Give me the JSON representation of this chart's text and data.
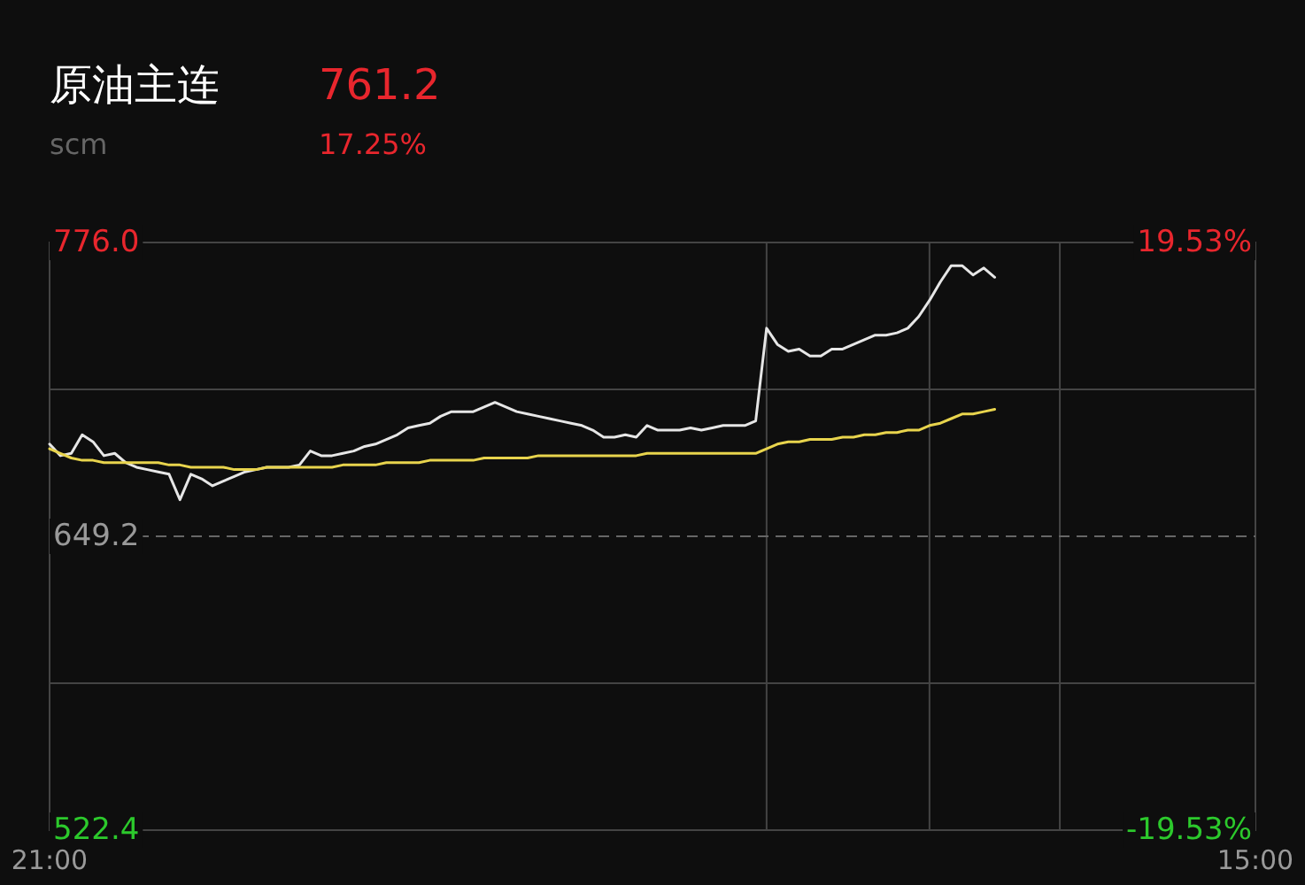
{
  "chart_data": {
    "type": "line",
    "title": "原油主连",
    "subtitle": "scm",
    "annotations": [
      "761.2",
      "17.25%"
    ],
    "categories": [
      "21:00",
      null,
      null,
      null,
      null,
      null,
      null,
      null,
      null,
      null,
      null,
      null,
      null,
      null,
      null,
      null,
      null,
      null,
      null,
      null,
      null,
      null,
      null,
      null,
      null,
      null,
      null,
      null,
      null,
      null,
      null,
      null,
      null,
      null,
      null,
      null,
      null,
      null,
      null,
      null,
      null,
      null,
      null,
      null,
      null,
      null,
      null,
      null,
      null,
      null,
      null,
      null,
      null,
      null,
      null,
      null,
      null,
      null,
      null,
      null,
      null,
      null,
      null,
      null,
      null,
      null,
      null,
      null,
      null,
      null,
      null,
      null,
      null,
      null,
      null,
      null,
      null,
      null,
      null,
      null,
      null,
      null,
      null,
      null,
      null,
      null,
      null,
      null,
      null,
      null,
      null,
      null,
      null,
      null,
      null,
      null,
      null,
      null,
      null,
      null,
      null,
      null,
      null,
      null,
      null,
      null,
      null,
      null,
      null,
      null,
      null,
      "15:00"
    ],
    "ylim": [
      522.4,
      776.0
    ],
    "yticks": [
      522.4,
      {
        "value": 585.8,
        "label": null
      },
      649.2,
      {
        "value": 712.6,
        "label": null
      },
      {
        "value": 776.0,
        "label": "776.0"
      }
    ],
    "y2lim": [
      -19.53,
      19.53
    ],
    "y2ticks": [
      {
        "value": -19.53,
        "label": "-19.53%"
      },
      {
        "value": 19.53,
        "label": "19.53%"
      }
    ],
    "grid": "y",
    "line_style": "solid",
    "ref_lines": [
      {
        "axis": "y",
        "value": 649.2,
        "color": "#666666",
        "line_style": "dashed"
      }
    ],
    "series": [
      {
        "color": "#e6e6e6",
        "values": [
          689,
          684,
          685,
          693,
          690,
          684,
          685,
          681,
          679,
          678,
          677,
          676,
          665,
          676,
          674,
          671,
          673,
          675,
          677,
          678,
          679,
          679,
          679,
          680,
          686,
          684,
          684,
          685,
          686,
          688,
          689,
          691,
          693,
          696,
          697,
          698,
          701,
          703,
          703,
          703,
          705,
          707,
          705,
          703,
          702,
          701,
          700,
          699,
          698,
          697,
          695,
          692,
          692,
          693,
          692,
          697,
          695,
          695,
          695,
          696,
          695,
          696,
          697,
          697,
          697,
          699,
          739,
          732,
          729,
          730,
          727,
          727,
          730,
          730,
          732,
          734,
          736,
          736,
          737,
          739,
          744,
          751,
          759,
          766,
          766,
          762,
          765,
          761,
          null,
          null,
          null,
          null,
          null,
          null,
          null,
          null,
          null,
          null,
          null,
          null,
          null,
          null,
          null,
          null,
          null,
          null,
          null,
          null,
          null,
          null,
          null,
          null
        ]
      },
      {
        "color": "#e8d44d",
        "values": [
          687,
          685,
          683,
          682,
          682,
          681,
          681,
          681,
          681,
          681,
          681,
          680,
          680,
          679,
          679,
          679,
          679,
          678,
          678,
          678,
          679,
          679,
          679,
          679,
          679,
          679,
          679,
          680,
          680,
          680,
          680,
          681,
          681,
          681,
          681,
          682,
          682,
          682,
          682,
          682,
          683,
          683,
          683,
          683,
          683,
          684,
          684,
          684,
          684,
          684,
          684,
          684,
          684,
          684,
          684,
          685,
          685,
          685,
          685,
          685,
          685,
          685,
          685,
          685,
          685,
          685,
          687,
          689,
          690,
          690,
          691,
          691,
          691,
          692,
          692,
          693,
          693,
          694,
          694,
          695,
          695,
          697,
          698,
          700,
          702,
          702,
          703,
          704,
          null,
          null,
          null,
          null,
          null,
          null,
          null,
          null,
          null,
          null,
          null,
          null,
          null,
          null,
          null,
          null,
          null,
          null,
          null,
          null,
          null,
          null,
          null,
          null
        ]
      }
    ]
  }
}
